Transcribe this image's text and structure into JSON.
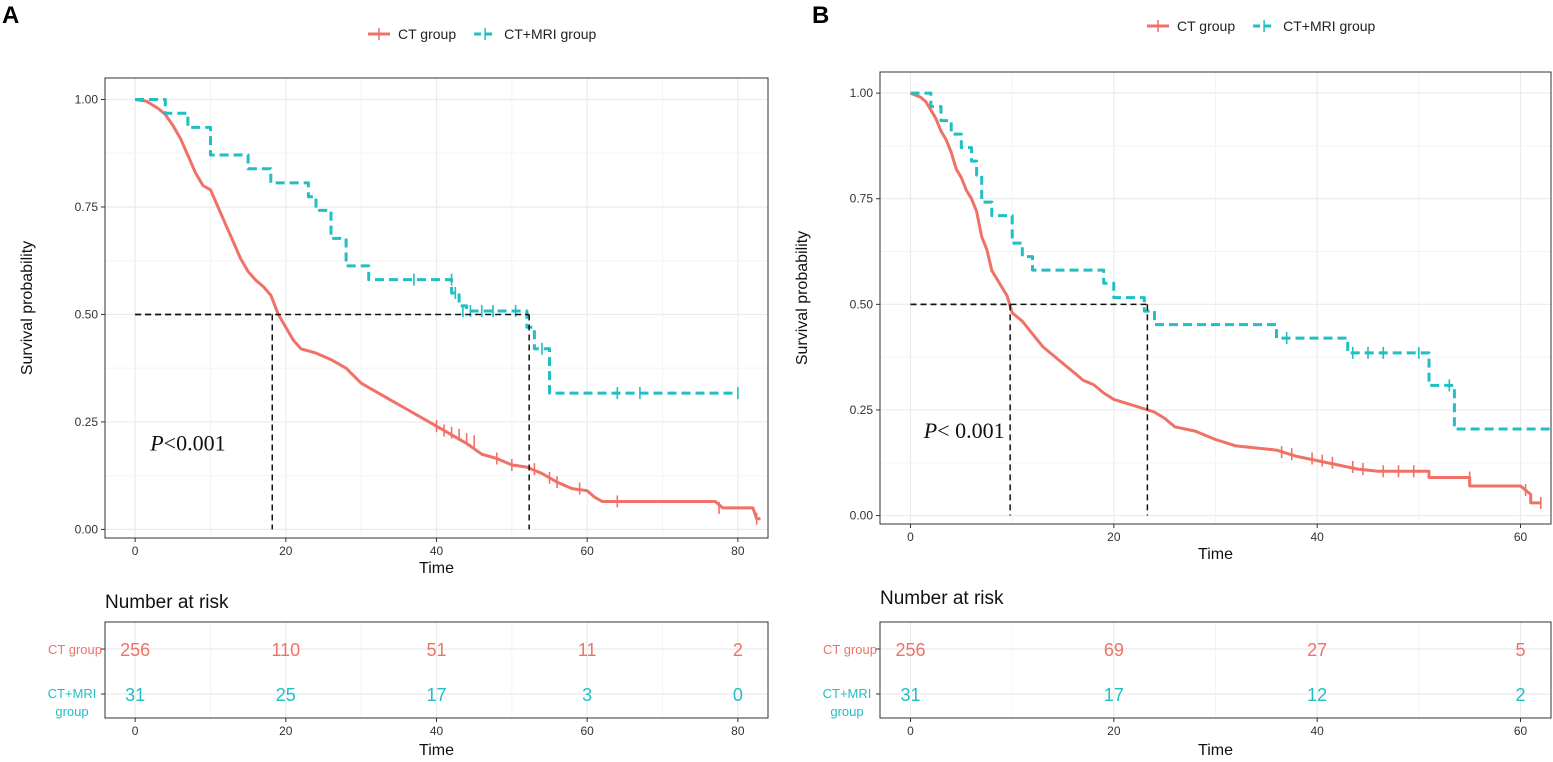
{
  "colors": {
    "ct": "#f07167",
    "mri": "#1fbfc4",
    "grid": "#ebebeb",
    "frame": "#333333",
    "median": "#111111"
  },
  "chart_data": [
    {
      "type": "line",
      "panel_label": "A",
      "legend": [
        "CT group",
        "CT+MRI group"
      ],
      "xlabel": "Time",
      "ylabel": "Survival probability",
      "xlim": [
        -4,
        84
      ],
      "ylim": [
        -0.02,
        1.05
      ],
      "xticks": [
        0,
        20,
        40,
        60,
        80
      ],
      "yticks": [
        0,
        0.25,
        0.5,
        0.75,
        1.0
      ],
      "ytick_labels": [
        "0.00",
        "0.25",
        "0.50",
        "0.75",
        "1.00"
      ],
      "pvalue": {
        "p": "P",
        "rest": "<0.001",
        "x": 2,
        "y": 0.2
      },
      "medians": [
        {
          "x": 18.2,
          "y": 0.5
        },
        {
          "x": 52.3,
          "y": 0.5
        }
      ],
      "series": [
        {
          "name": "CT group",
          "points": [
            [
              0,
              1.0
            ],
            [
              1.5,
              0.996
            ],
            [
              3,
              0.98
            ],
            [
              4,
              0.965
            ],
            [
              5,
              0.94
            ],
            [
              6,
              0.91
            ],
            [
              7,
              0.87
            ],
            [
              8,
              0.83
            ],
            [
              9,
              0.8
            ],
            [
              10,
              0.79
            ],
            [
              11,
              0.75
            ],
            [
              12,
              0.71
            ],
            [
              13,
              0.67
            ],
            [
              14,
              0.63
            ],
            [
              15,
              0.6
            ],
            [
              16,
              0.58
            ],
            [
              17,
              0.565
            ],
            [
              18,
              0.545
            ],
            [
              19,
              0.5
            ],
            [
              20,
              0.47
            ],
            [
              21,
              0.44
            ],
            [
              22,
              0.42
            ],
            [
              24,
              0.41
            ],
            [
              26,
              0.395
            ],
            [
              28,
              0.375
            ],
            [
              30,
              0.34
            ],
            [
              32,
              0.32
            ],
            [
              34,
              0.3
            ],
            [
              36,
              0.28
            ],
            [
              38,
              0.26
            ],
            [
              40,
              0.24
            ],
            [
              42,
              0.22
            ],
            [
              44,
              0.2
            ],
            [
              46,
              0.175
            ],
            [
              48,
              0.165
            ],
            [
              50,
              0.15
            ],
            [
              52,
              0.145
            ],
            [
              54,
              0.13
            ],
            [
              56,
              0.11
            ],
            [
              58,
              0.095
            ],
            [
              60,
              0.09
            ],
            [
              61,
              0.075
            ],
            [
              62,
              0.065
            ],
            [
              64,
              0.065
            ],
            [
              77,
              0.065
            ],
            [
              78,
              0.05
            ],
            [
              82,
              0.05
            ],
            [
              82.5,
              0.025
            ],
            [
              83,
              0.025
            ]
          ],
          "censored": [
            [
              40,
              0.24
            ],
            [
              41,
              0.23
            ],
            [
              42,
              0.225
            ],
            [
              43,
              0.22
            ],
            [
              44,
              0.21
            ],
            [
              45,
              0.205
            ],
            [
              48,
              0.165
            ],
            [
              50,
              0.15
            ],
            [
              53,
              0.14
            ],
            [
              55,
              0.12
            ],
            [
              56,
              0.11
            ],
            [
              59,
              0.095
            ],
            [
              64,
              0.065
            ],
            [
              77.5,
              0.05
            ],
            [
              82.5,
              0.025
            ]
          ]
        },
        {
          "name": "CT+MRI group",
          "points": [
            [
              0,
              1.0
            ],
            [
              4,
              1.0
            ],
            [
              4,
              0.968
            ],
            [
              7,
              0.968
            ],
            [
              7,
              0.935
            ],
            [
              10,
              0.935
            ],
            [
              10,
              0.871
            ],
            [
              15,
              0.871
            ],
            [
              15,
              0.839
            ],
            [
              18,
              0.839
            ],
            [
              18,
              0.806
            ],
            [
              23,
              0.806
            ],
            [
              23,
              0.774
            ],
            [
              24,
              0.774
            ],
            [
              24,
              0.742
            ],
            [
              26,
              0.742
            ],
            [
              26,
              0.677
            ],
            [
              28,
              0.677
            ],
            [
              28,
              0.613
            ],
            [
              31,
              0.613
            ],
            [
              31,
              0.581
            ],
            [
              42,
              0.581
            ],
            [
              42,
              0.55
            ],
            [
              43,
              0.55
            ],
            [
              43,
              0.52
            ],
            [
              44,
              0.52
            ],
            [
              44,
              0.508
            ],
            [
              52,
              0.508
            ],
            [
              52,
              0.47
            ],
            [
              53,
              0.47
            ],
            [
              53,
              0.42
            ],
            [
              55,
              0.42
            ],
            [
              55,
              0.317
            ],
            [
              80,
              0.317
            ]
          ],
          "censored": [
            [
              37,
              0.581
            ],
            [
              42,
              0.581
            ],
            [
              42.5,
              0.55
            ],
            [
              43.5,
              0.508
            ],
            [
              44.5,
              0.508
            ],
            [
              46,
              0.508
            ],
            [
              47.5,
              0.508
            ],
            [
              50.5,
              0.508
            ],
            [
              54,
              0.42
            ],
            [
              64,
              0.317
            ],
            [
              67,
              0.317
            ],
            [
              80,
              0.317
            ]
          ]
        }
      ],
      "risk_table": {
        "title": "Number at risk",
        "xlabel": "Time",
        "xticks": [
          0,
          20,
          40,
          60,
          80
        ],
        "rows": [
          {
            "label": "CT group",
            "values": [
              "256",
              "110",
              "51",
              "11",
              "2"
            ]
          },
          {
            "label": "CT+MRI group",
            "values": [
              "31",
              "25",
              "17",
              "3",
              "0"
            ]
          }
        ]
      }
    },
    {
      "type": "line",
      "panel_label": "B",
      "legend": [
        "CT group",
        "CT+MRI group"
      ],
      "xlabel": "Time",
      "ylabel": "Survival probability",
      "xlim": [
        -3,
        63
      ],
      "ylim": [
        -0.02,
        1.05
      ],
      "xticks": [
        0,
        20,
        40,
        60
      ],
      "yticks": [
        0,
        0.25,
        0.5,
        0.75,
        1.0
      ],
      "ytick_labels": [
        "0.00",
        "0.25",
        "0.50",
        "0.75",
        "1.00"
      ],
      "pvalue": {
        "p": "P",
        "rest": "< 0.001",
        "x": 1.3,
        "y": 0.2
      },
      "medians": [
        {
          "x": 9.8,
          "y": 0.5
        },
        {
          "x": 23.3,
          "y": 0.5
        }
      ],
      "series": [
        {
          "name": "CT group",
          "points": [
            [
              0,
              1.0
            ],
            [
              1,
              0.99
            ],
            [
              1.5,
              0.98
            ],
            [
              2,
              0.96
            ],
            [
              2.5,
              0.94
            ],
            [
              3,
              0.91
            ],
            [
              3.5,
              0.89
            ],
            [
              4,
              0.86
            ],
            [
              4.5,
              0.82
            ],
            [
              5,
              0.8
            ],
            [
              5.5,
              0.77
            ],
            [
              6,
              0.75
            ],
            [
              6.5,
              0.72
            ],
            [
              7,
              0.66
            ],
            [
              7.5,
              0.63
            ],
            [
              8,
              0.58
            ],
            [
              8.5,
              0.56
            ],
            [
              9,
              0.54
            ],
            [
              9.5,
              0.52
            ],
            [
              10,
              0.48
            ],
            [
              11,
              0.46
            ],
            [
              12,
              0.43
            ],
            [
              13,
              0.4
            ],
            [
              14,
              0.38
            ],
            [
              15,
              0.36
            ],
            [
              16,
              0.34
            ],
            [
              17,
              0.32
            ],
            [
              18,
              0.31
            ],
            [
              19,
              0.29
            ],
            [
              20,
              0.275
            ],
            [
              22,
              0.26
            ],
            [
              24,
              0.245
            ],
            [
              25,
              0.23
            ],
            [
              26,
              0.21
            ],
            [
              28,
              0.2
            ],
            [
              30,
              0.18
            ],
            [
              32,
              0.165
            ],
            [
              34,
              0.16
            ],
            [
              36,
              0.155
            ],
            [
              38,
              0.14
            ],
            [
              40,
              0.13
            ],
            [
              42,
              0.12
            ],
            [
              44,
              0.11
            ],
            [
              46,
              0.105
            ],
            [
              51,
              0.105
            ],
            [
              51,
              0.09
            ],
            [
              55,
              0.09
            ],
            [
              55,
              0.07
            ],
            [
              60,
              0.07
            ],
            [
              61,
              0.05
            ],
            [
              61,
              0.03
            ],
            [
              62,
              0.03
            ]
          ],
          "censored": [
            [
              36.5,
              0.15
            ],
            [
              37.5,
              0.145
            ],
            [
              39.5,
              0.135
            ],
            [
              40.5,
              0.13
            ],
            [
              41.5,
              0.125
            ],
            [
              43.5,
              0.115
            ],
            [
              44.5,
              0.11
            ],
            [
              46.5,
              0.105
            ],
            [
              48,
              0.105
            ],
            [
              49.5,
              0.105
            ],
            [
              55,
              0.09
            ],
            [
              60.5,
              0.06
            ],
            [
              62,
              0.03
            ]
          ]
        },
        {
          "name": "CT+MRI group",
          "points": [
            [
              0,
              1.0
            ],
            [
              2,
              1.0
            ],
            [
              2,
              0.968
            ],
            [
              3,
              0.968
            ],
            [
              3,
              0.935
            ],
            [
              4,
              0.935
            ],
            [
              4,
              0.903
            ],
            [
              5,
              0.903
            ],
            [
              5,
              0.871
            ],
            [
              6,
              0.871
            ],
            [
              6,
              0.839
            ],
            [
              6.5,
              0.839
            ],
            [
              6.5,
              0.806
            ],
            [
              7,
              0.806
            ],
            [
              7,
              0.742
            ],
            [
              8,
              0.742
            ],
            [
              8,
              0.71
            ],
            [
              10,
              0.71
            ],
            [
              10,
              0.645
            ],
            [
              11,
              0.645
            ],
            [
              11,
              0.613
            ],
            [
              12,
              0.613
            ],
            [
              12,
              0.581
            ],
            [
              19,
              0.581
            ],
            [
              19,
              0.55
            ],
            [
              20,
              0.55
            ],
            [
              20,
              0.516
            ],
            [
              23,
              0.516
            ],
            [
              23,
              0.484
            ],
            [
              24,
              0.484
            ],
            [
              24,
              0.452
            ],
            [
              36,
              0.452
            ],
            [
              36,
              0.42
            ],
            [
              43,
              0.42
            ],
            [
              43,
              0.385
            ],
            [
              51,
              0.385
            ],
            [
              51,
              0.308
            ],
            [
              53.5,
              0.308
            ],
            [
              53.5,
              0.205
            ],
            [
              63,
              0.205
            ]
          ],
          "censored": [
            [
              37,
              0.42
            ],
            [
              43.5,
              0.385
            ],
            [
              45,
              0.385
            ],
            [
              46.5,
              0.385
            ],
            [
              50,
              0.385
            ],
            [
              53,
              0.308
            ]
          ]
        }
      ],
      "risk_table": {
        "title": "Number at risk",
        "xlabel": "Time",
        "xticks": [
          0,
          20,
          40,
          60
        ],
        "rows": [
          {
            "label": "CT group",
            "values": [
              "256",
              "69",
              "27",
              "5"
            ]
          },
          {
            "label": "CT+MRI group",
            "values": [
              "31",
              "17",
              "12",
              "2"
            ]
          }
        ]
      }
    }
  ]
}
